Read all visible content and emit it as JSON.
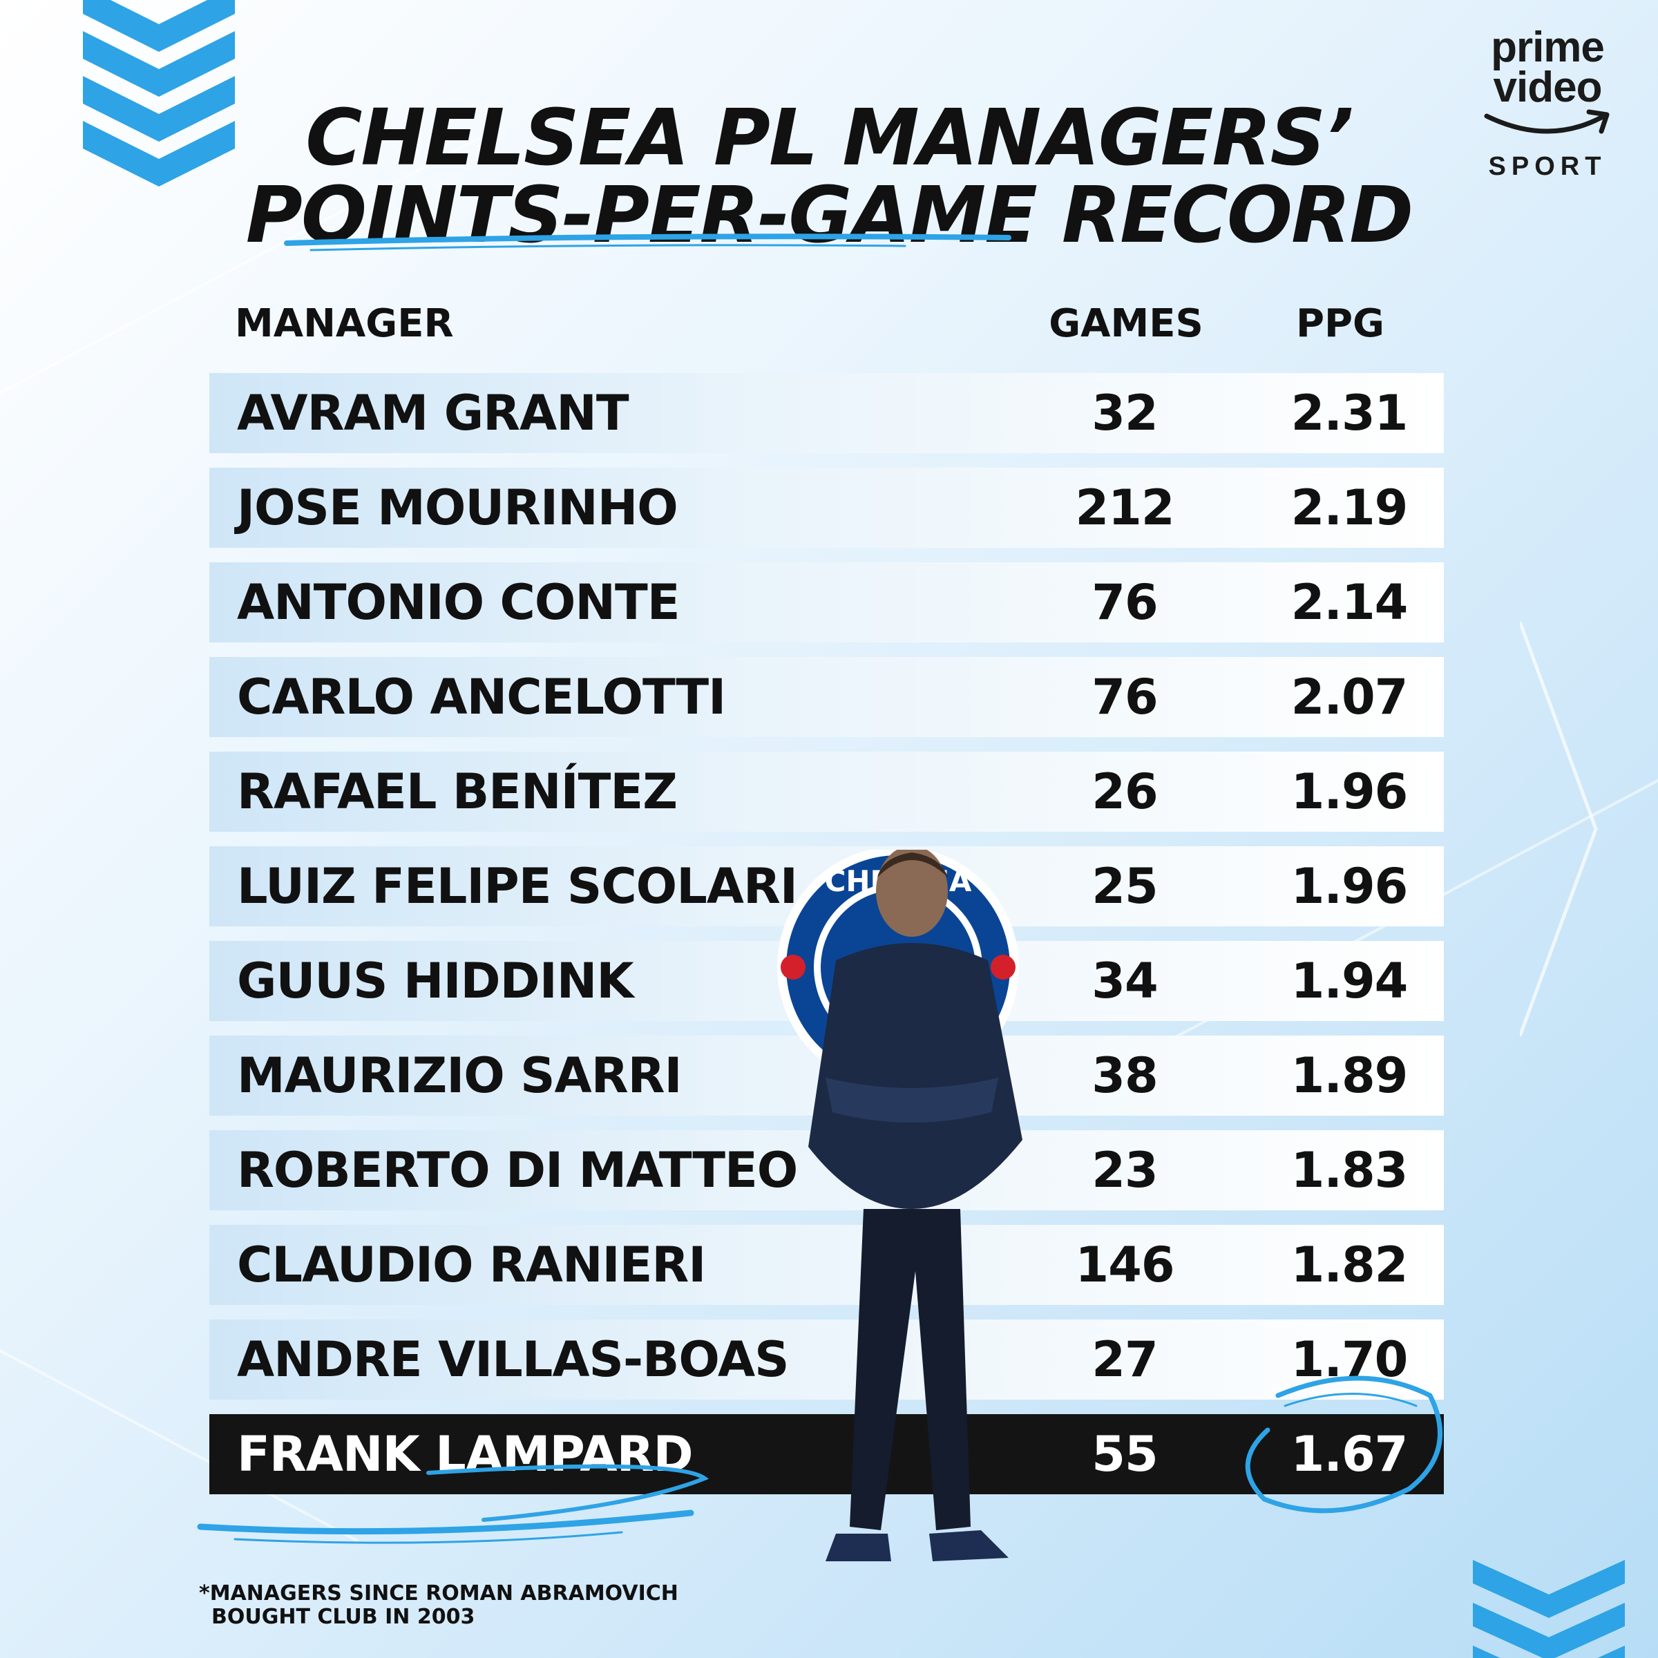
{
  "title": {
    "line1": "CHELSEA PL MANAGERS’",
    "line2": "POINTS-PER-GAME RECORD"
  },
  "logo": {
    "line1": "prime",
    "line2": "video",
    "line3": "SPORT"
  },
  "table": {
    "headers": {
      "manager": "MANAGER",
      "games": "GAMES",
      "ppg": "PPG"
    },
    "rows": [
      {
        "name": "AVRAM GRANT",
        "games": "32",
        "ppg": "2.31"
      },
      {
        "name": "JOSE MOURINHO",
        "games": "212",
        "ppg": "2.19"
      },
      {
        "name": "ANTONIO CONTE",
        "games": "76",
        "ppg": "2.14"
      },
      {
        "name": "CARLO ANCELOTTI",
        "games": "76",
        "ppg": "2.07"
      },
      {
        "name": "RAFAEL BENÍTEZ",
        "games": "26",
        "ppg": "1.96"
      },
      {
        "name": "LUIZ FELIPE SCOLARI",
        "games": "25",
        "ppg": "1.96"
      },
      {
        "name": "GUUS HIDDINK",
        "games": "34",
        "ppg": "1.94"
      },
      {
        "name": "MAURIZIO SARRI",
        "games": "38",
        "ppg": "1.89"
      },
      {
        "name": "ROBERTO DI MATTEO",
        "games": "23",
        "ppg": "1.83"
      },
      {
        "name": "CLAUDIO RANIERI",
        "games": "146",
        "ppg": "1.82"
      },
      {
        "name": "ANDRE VILLAS-BOAS",
        "games": "27",
        "ppg": "1.70"
      },
      {
        "name": "FRANK LAMPARD",
        "games": "55",
        "ppg": "1.67",
        "highlight": true
      }
    ]
  },
  "footnote": {
    "line1": "*MANAGERS SINCE ROMAN ABRAMOVICH",
    "line2": "BOUGHT CLUB IN 2003"
  },
  "colors": {
    "accent": "#2ea3e6",
    "highlight_row": "#141414",
    "text": "#111111"
  },
  "images": {
    "manager_photo": "man-standing-arms-crossed-photo",
    "badge": "chelsea-badge",
    "crest_text": "CHELSEA"
  }
}
